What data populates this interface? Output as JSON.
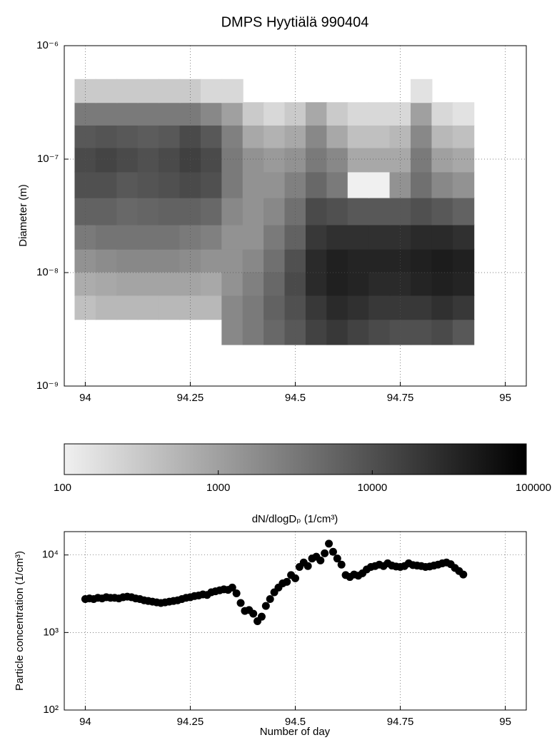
{
  "chart_data": [
    {
      "type": "contour",
      "title": "DMPS Hyytiälä 990404",
      "y_label": "Diameter (m)",
      "xlim": [
        93.95,
        95.05
      ],
      "xticks": [
        94,
        94.25,
        94.5,
        94.75,
        95
      ],
      "ylim": [
        1e-09,
        1e-06
      ],
      "y_scale": "log",
      "yticks": [
        {
          "value": 1e-09,
          "label": "10⁻⁹"
        },
        {
          "value": 1e-08,
          "label": "10⁻⁸"
        },
        {
          "value": 1e-07,
          "label": "10⁻⁷"
        },
        {
          "value": 1e-06,
          "label": "10⁻⁶"
        }
      ],
      "grid": true,
      "x": [
        94,
        94.05,
        94.1,
        94.15,
        94.2,
        94.25,
        94.3,
        94.35,
        94.4,
        94.45,
        94.5,
        94.55,
        94.6,
        94.65,
        94.7,
        94.75,
        94.8,
        94.85,
        94.9
      ],
      "y": [
        3e-09,
        5e-09,
        8e-09,
        1.3e-08,
        2e-08,
        3.5e-08,
        6e-08,
        1e-07,
        1.6e-07,
        2.5e-07,
        4e-07
      ],
      "z": [
        [
          null,
          null,
          null,
          null,
          null,
          null,
          null,
          2000,
          3000,
          5000,
          8000,
          15000,
          20000,
          15000,
          12000,
          10000,
          10000,
          12000,
          8000
        ],
        [
          400,
          500,
          500,
          500,
          500,
          500,
          500,
          2000,
          3000,
          6000,
          10000,
          20000,
          30000,
          25000,
          20000,
          20000,
          20000,
          25000,
          20000
        ],
        [
          700,
          800,
          900,
          900,
          900,
          900,
          800,
          1500,
          2500,
          5000,
          12000,
          30000,
          40000,
          35000,
          30000,
          30000,
          35000,
          40000,
          35000
        ],
        [
          1500,
          1800,
          2000,
          2000,
          2000,
          1800,
          1500,
          1500,
          2000,
          4000,
          10000,
          30000,
          40000,
          35000,
          35000,
          35000,
          40000,
          45000,
          40000
        ],
        [
          3000,
          3500,
          3500,
          3500,
          3500,
          3000,
          2500,
          1500,
          1500,
          3000,
          6000,
          20000,
          25000,
          25000,
          25000,
          25000,
          30000,
          30000,
          25000
        ],
        [
          6000,
          6000,
          5000,
          5500,
          6000,
          6000,
          5000,
          2000,
          1500,
          2000,
          4000,
          12000,
          10000,
          8000,
          8000,
          8000,
          10000,
          8000,
          6000
        ],
        [
          10000,
          10000,
          8000,
          9000,
          10000,
          12000,
          10000,
          3000,
          1500,
          1500,
          2500,
          5000,
          3000,
          80,
          80,
          1500,
          4000,
          2000,
          1500
        ],
        [
          12000,
          14000,
          12000,
          10000,
          12000,
          16000,
          12000,
          3000,
          1500,
          1200,
          1500,
          3000,
          2000,
          800,
          800,
          800,
          3000,
          1000,
          800
        ],
        [
          8000,
          9000,
          8000,
          7000,
          8000,
          12000,
          8000,
          2500,
          800,
          600,
          800,
          2000,
          800,
          400,
          400,
          500,
          2000,
          500,
          400
        ],
        [
          3000,
          3000,
          3000,
          3000,
          3000,
          3000,
          2000,
          1000,
          300,
          200,
          300,
          800,
          300,
          200,
          200,
          200,
          1000,
          200,
          150
        ],
        [
          300,
          300,
          300,
          300,
          300,
          300,
          200,
          200,
          null,
          null,
          null,
          null,
          null,
          null,
          null,
          null,
          150,
          null,
          null
        ]
      ],
      "clim": [
        100,
        100000
      ],
      "colorbar_ticks": [
        100,
        1000,
        10000,
        100000
      ],
      "colorbar_label": "dN/dlogDₚ (1/cm³)"
    },
    {
      "type": "scatter",
      "x_label": "Number of day",
      "y_label": "Particle concentration (1/cm³)",
      "xlim": [
        93.95,
        95.05
      ],
      "xticks": [
        94,
        94.25,
        94.5,
        94.75,
        95
      ],
      "ylim": [
        100,
        20000
      ],
      "y_scale": "log",
      "yticks": [
        {
          "value": 100,
          "label": "10²"
        },
        {
          "value": 1000,
          "label": "10³"
        },
        {
          "value": 10000,
          "label": "10⁴"
        }
      ],
      "grid": true,
      "color": "#000000",
      "x": [
        94,
        94.01,
        94.02,
        94.03,
        94.04,
        94.05,
        94.06,
        94.07,
        94.08,
        94.09,
        94.1,
        94.11,
        94.12,
        94.13,
        94.14,
        94.15,
        94.16,
        94.17,
        94.18,
        94.19,
        94.2,
        94.21,
        94.22,
        94.23,
        94.24,
        94.25,
        94.26,
        94.27,
        94.28,
        94.29,
        94.3,
        94.31,
        94.32,
        94.33,
        94.34,
        94.35,
        94.36,
        94.37,
        94.38,
        94.39,
        94.4,
        94.41,
        94.42,
        94.43,
        94.44,
        94.45,
        94.46,
        94.47,
        94.48,
        94.49,
        94.5,
        94.51,
        94.52,
        94.53,
        94.54,
        94.55,
        94.56,
        94.57,
        94.58,
        94.59,
        94.6,
        94.61,
        94.62,
        94.63,
        94.64,
        94.65,
        94.66,
        94.67,
        94.68,
        94.69,
        94.7,
        94.71,
        94.72,
        94.73,
        94.74,
        94.75,
        94.76,
        94.77,
        94.78,
        94.79,
        94.8,
        94.81,
        94.82,
        94.83,
        94.84,
        94.85,
        94.86,
        94.87,
        94.88,
        94.89,
        94.9
      ],
      "values": [
        2700,
        2750,
        2700,
        2800,
        2750,
        2850,
        2800,
        2800,
        2750,
        2850,
        2900,
        2850,
        2750,
        2700,
        2600,
        2550,
        2500,
        2450,
        2400,
        2450,
        2500,
        2550,
        2600,
        2700,
        2800,
        2850,
        2950,
        3000,
        3100,
        3050,
        3300,
        3400,
        3500,
        3600,
        3550,
        3800,
        3200,
        2400,
        1900,
        1950,
        1750,
        1400,
        1600,
        2200,
        2700,
        3300,
        3800,
        4300,
        4500,
        5500,
        5000,
        7000,
        8000,
        7200,
        9000,
        9500,
        8500,
        10500,
        14000,
        11000,
        9000,
        7500,
        5500,
        5200,
        5600,
        5400,
        5800,
        6500,
        7000,
        7200,
        7500,
        7200,
        7800,
        7300,
        7100,
        7000,
        7200,
        7800,
        7400,
        7300,
        7200,
        7000,
        7100,
        7300,
        7500,
        7800,
        8000,
        7600,
        6800,
        6200,
        5600
      ]
    }
  ]
}
